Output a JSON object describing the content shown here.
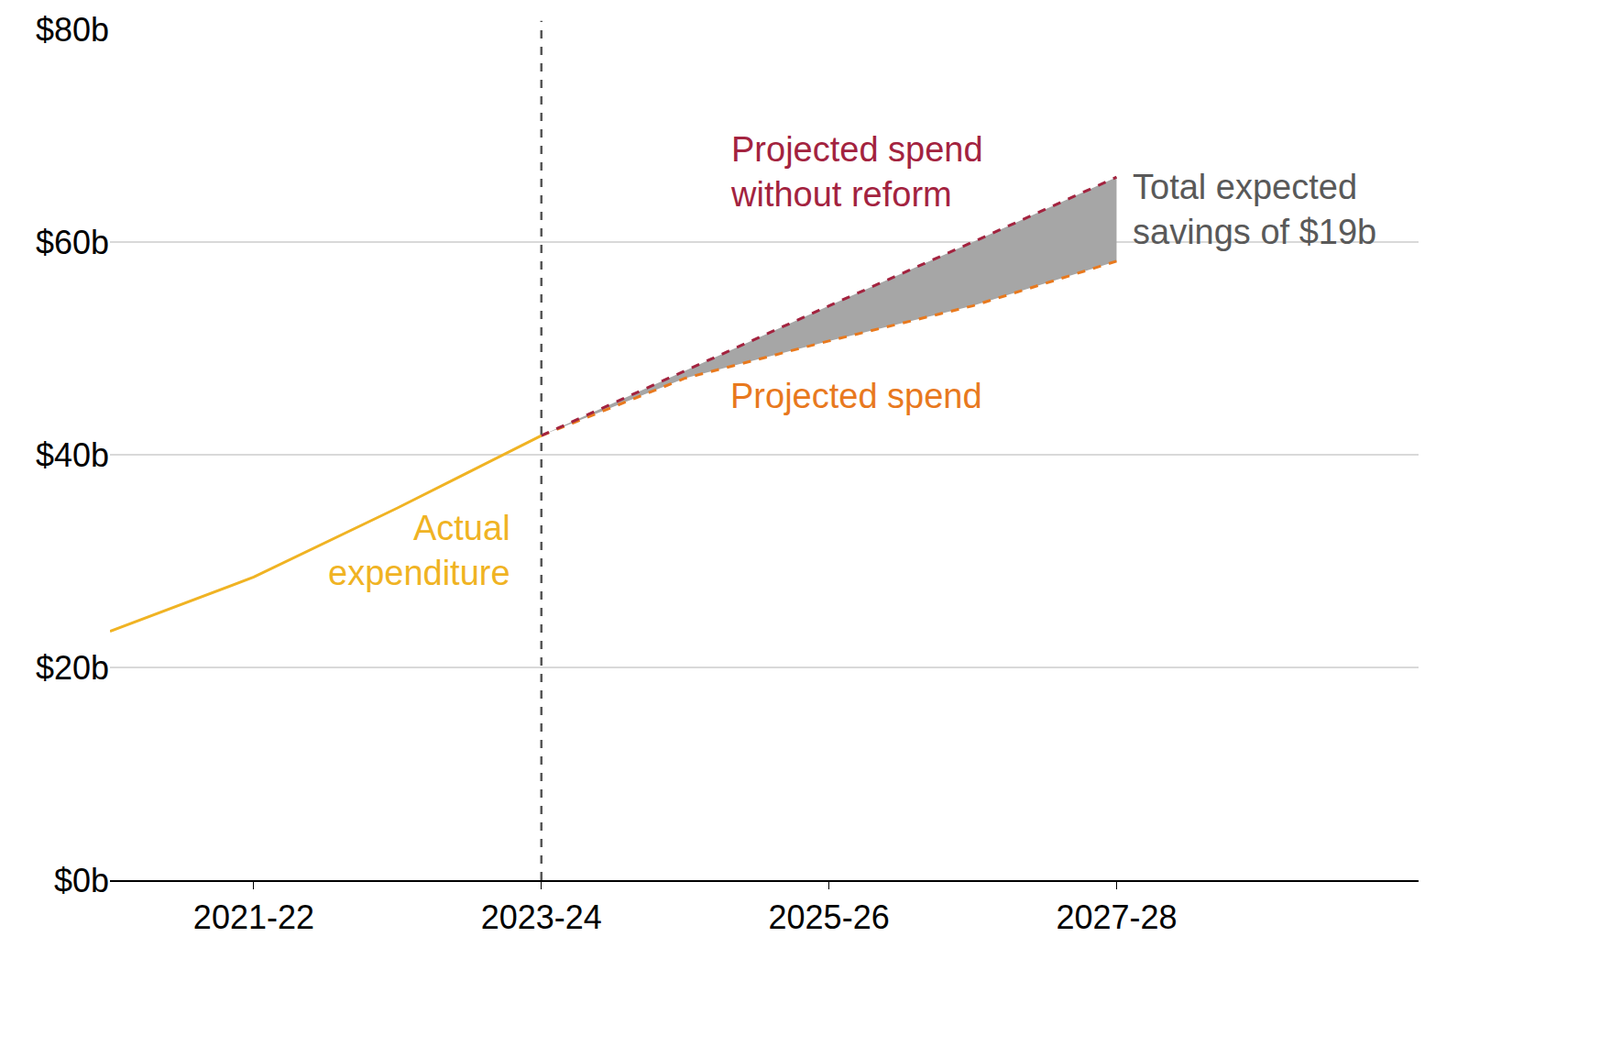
{
  "chart_data": {
    "type": "line",
    "xlim": [
      2021,
      2030.1
    ],
    "xticks": [
      {
        "value": 2022,
        "label": "2021-22"
      },
      {
        "value": 2024,
        "label": "2023-24"
      },
      {
        "value": 2026,
        "label": "2025-26"
      },
      {
        "value": 2028,
        "label": "2027-28"
      }
    ],
    "ylim": [
      0,
      80
    ],
    "yticks": [
      {
        "value": 0,
        "label": "$0b"
      },
      {
        "value": 20,
        "label": "$20b"
      },
      {
        "value": 40,
        "label": "$40b"
      },
      {
        "value": 60,
        "label": "$60b"
      },
      {
        "value": 80,
        "label": "$80b"
      }
    ],
    "grid": true,
    "series": [
      {
        "name": "Actual expenditure",
        "color": "#f0b323",
        "line_style": "solid",
        "x": [
          2021,
          2022,
          2023,
          2024
        ],
        "values": [
          23.4,
          28.5,
          35.0,
          41.8
        ]
      },
      {
        "name": "Projected spend",
        "color": "#e8791e",
        "line_style": "dash",
        "x": [
          2024,
          2025,
          2026,
          2027,
          2028
        ],
        "values": [
          41.8,
          47.2,
          50.7,
          54.0,
          58.2
        ]
      },
      {
        "name": "Projected spend without reform",
        "color": "#a3233f",
        "line_style": "dash",
        "x": [
          2024,
          2025,
          2026,
          2027,
          2028
        ],
        "values": [
          41.8,
          47.9,
          54.0,
          60.0,
          66.1
        ]
      }
    ],
    "savings": {
      "text": "Total expected savings of $19b",
      "color": "#a6a6a6"
    }
  }
}
